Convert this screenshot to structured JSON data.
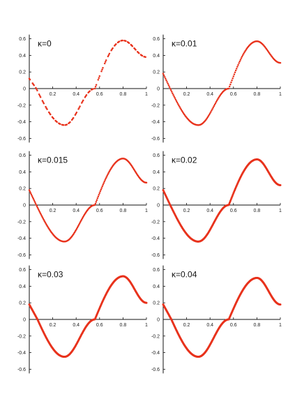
{
  "chart_data": [
    {
      "type": "scatter",
      "label": "κ=0",
      "kappa": 0,
      "xlim": [
        0,
        1
      ],
      "ylim": [
        -0.65,
        0.65
      ],
      "xticks": [
        "0.2",
        "0.4",
        "0.6",
        "0.8",
        "1"
      ],
      "yticks": [
        "0.6",
        "0.4",
        "0.2",
        "0",
        "-0.2",
        "-0.4",
        "-0.6"
      ],
      "amplitude": 0.58,
      "x_zero1": 0.06,
      "x_min": 0.3,
      "x_zero2": 0.56,
      "x_max": 0.8,
      "y_min": -0.44,
      "y_max": 0.58,
      "y_at_1": 0.38
    },
    {
      "type": "scatter",
      "label": "κ=0.01",
      "kappa": 0.01,
      "xlim": [
        0,
        1
      ],
      "ylim": [
        -0.65,
        0.65
      ],
      "xticks": [
        "0.2",
        "0.4",
        "0.6",
        "0.8",
        "1"
      ],
      "yticks": [
        "0.6",
        "0.4",
        "0.2",
        "0",
        "-0.2",
        "-0.4",
        "-0.6"
      ],
      "x_zero1": 0.06,
      "x_min": 0.3,
      "x_zero2": 0.56,
      "x_max": 0.8,
      "y_min": -0.44,
      "y_max": 0.57,
      "y_at_1": 0.31
    },
    {
      "type": "scatter",
      "label": "κ=0.015",
      "kappa": 0.015,
      "xlim": [
        0,
        1
      ],
      "ylim": [
        -0.65,
        0.65
      ],
      "xticks": [
        "0.2",
        "0.4",
        "0.6",
        "0.8",
        "1"
      ],
      "yticks": [
        "0.6",
        "0.4",
        "0.2",
        "0",
        "-0.2",
        "-0.4",
        "-0.6"
      ],
      "x_zero1": 0.06,
      "x_min": 0.3,
      "x_zero2": 0.56,
      "x_max": 0.8,
      "y_min": -0.44,
      "y_max": 0.56,
      "y_at_1": 0.27
    },
    {
      "type": "scatter",
      "label": "κ=0.02",
      "kappa": 0.02,
      "xlim": [
        0,
        1
      ],
      "ylim": [
        -0.65,
        0.65
      ],
      "xticks": [
        "0.2",
        "0.4",
        "0.6",
        "0.8",
        "1"
      ],
      "yticks": [
        "0.6",
        "0.4",
        "0.2",
        "0",
        "-0.2",
        "-0.4",
        "-0.6"
      ],
      "x_zero1": 0.06,
      "x_min": 0.3,
      "x_zero2": 0.56,
      "x_max": 0.8,
      "y_min": -0.44,
      "y_max": 0.55,
      "y_at_1": 0.24
    },
    {
      "type": "scatter",
      "label": "κ=0.03",
      "kappa": 0.03,
      "xlim": [
        0,
        1
      ],
      "ylim": [
        -0.65,
        0.65
      ],
      "xticks": [
        "0.2",
        "0.4",
        "0.6",
        "0.8",
        "1"
      ],
      "yticks": [
        "0.6",
        "0.4",
        "0.2",
        "0",
        "-0.2",
        "-0.4",
        "-0.6"
      ],
      "x_zero1": 0.07,
      "x_min": 0.3,
      "x_zero2": 0.56,
      "x_max": 0.8,
      "y_min": -0.45,
      "y_max": 0.52,
      "y_at_1": 0.2
    },
    {
      "type": "scatter",
      "label": "κ=0.04",
      "kappa": 0.04,
      "xlim": [
        0,
        1
      ],
      "ylim": [
        -0.65,
        0.65
      ],
      "xticks": [
        "0.2",
        "0.4",
        "0.6",
        "0.8",
        "1"
      ],
      "yticks": [
        "0.6",
        "0.4",
        "0.2",
        "0",
        "-0.2",
        "-0.4",
        "-0.6"
      ],
      "x_zero1": 0.07,
      "x_min": 0.3,
      "x_zero2": 0.56,
      "x_max": 0.8,
      "y_min": -0.45,
      "y_max": 0.5,
      "y_at_1": 0.18
    }
  ],
  "colors": {
    "points": "#e8321c",
    "axes": "#111111"
  }
}
